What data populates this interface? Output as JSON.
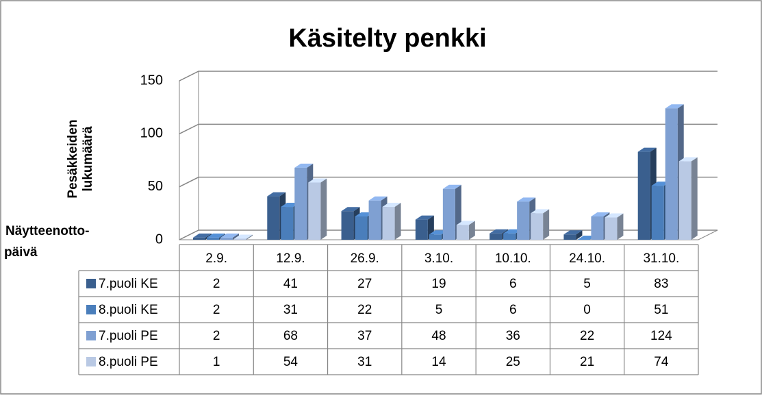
{
  "chart_data": {
    "type": "bar3d",
    "title": "Käsitelty penkki",
    "ylabel": [
      "Pesäkkeiden",
      "lukumäärä"
    ],
    "xlabel": [
      "Näytteenotto-",
      "päivä"
    ],
    "categories": [
      "2.9.",
      "12.9.",
      "26.9.",
      "3.10.",
      "10.10.",
      "24.10.",
      "31.10."
    ],
    "series": [
      {
        "name": "7.puoli KE",
        "color": "#3a5f8e",
        "values": [
          2,
          41,
          27,
          19,
          6,
          5,
          83
        ]
      },
      {
        "name": "8.puoli KE",
        "color": "#4a7ebb",
        "values": [
          2,
          31,
          22,
          5,
          6,
          0,
          51
        ]
      },
      {
        "name": "7.puoli PE",
        "color": "#7fa0d2",
        "values": [
          2,
          68,
          37,
          48,
          36,
          22,
          124
        ]
      },
      {
        "name": "8.puoli PE",
        "color": "#b9c9e4",
        "values": [
          1,
          54,
          31,
          14,
          25,
          21,
          74
        ]
      }
    ],
    "ylim": [
      0,
      150
    ],
    "yticks": [
      0,
      50,
      100,
      150
    ],
    "grid": true,
    "data_table": true
  }
}
